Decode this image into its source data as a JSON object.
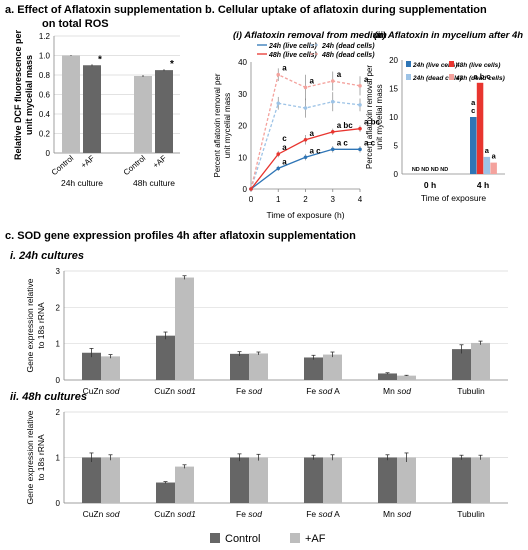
{
  "headings": {
    "a": "a. Effect of Aflatoxin supplementation",
    "a2": "on total ROS",
    "b": "b. Cellular uptake of aflatoxin during supplementation",
    "b_i": "(i) Aflatoxin removal from medium",
    "b_ii": "(ii) Aflatoxin in mycelium after 4h",
    "c": "c. SOD gene expression profiles 4h after aflatoxin supplementation",
    "c_i": "i. 24h cultures",
    "c_ii": "ii. 48h cultures"
  },
  "colors": {
    "dark_bar": "#666666",
    "light_bar": "#bdbdbd",
    "live24": "#2e75b6",
    "live48": "#e8352f",
    "dead24": "#9dc3e6",
    "dead48": "#f4a29d"
  },
  "chart_data": [
    {
      "id": "a",
      "type": "bar",
      "ylabel_lines": [
        "Relative DCF fluorescence per",
        "unit mycelial mass"
      ],
      "ylim": [
        0,
        1.2
      ],
      "yticks": [
        "0",
        "0.2",
        "0.4",
        "0.6",
        "0.8",
        "1.0",
        "1.2"
      ],
      "groups": [
        "24h culture",
        "48h culture"
      ],
      "bars": [
        {
          "group": 0,
          "label": "Control",
          "value": 1.0,
          "err": 0.005,
          "color": "light",
          "star": false
        },
        {
          "group": 0,
          "label": "+AF",
          "value": 0.9,
          "err": 0.01,
          "color": "dark",
          "star": true
        },
        {
          "group": 1,
          "label": "Control",
          "value": 0.79,
          "err": 0.01,
          "color": "light",
          "star": false
        },
        {
          "group": 1,
          "label": "+AF",
          "value": 0.85,
          "err": 0.01,
          "color": "dark",
          "star": true
        }
      ],
      "star_label": "*"
    },
    {
      "id": "b_i",
      "type": "line",
      "ylabel_lines": [
        "Percent aflatoxin removal per",
        "unit mycelial mass"
      ],
      "xlabel": "Time of exposure (h)",
      "x": [
        0,
        1,
        2,
        3,
        4
      ],
      "xticks": [
        "0",
        "1",
        "2",
        "3",
        "4"
      ],
      "ylim": [
        0,
        40
      ],
      "yticks": [
        "0",
        "10",
        "20",
        "30",
        "40"
      ],
      "series": [
        {
          "name": "24h (live cells)",
          "color": "live24",
          "dashed": false,
          "values": [
            0,
            6.5,
            10,
            12.5,
            12.5
          ],
          "err": [
            0,
            0.8,
            1,
            1,
            1
          ],
          "labels": [
            "",
            "a",
            "a c",
            "a c",
            "a c"
          ]
        },
        {
          "name": "48h (live cells)",
          "color": "live48",
          "dashed": false,
          "values": [
            0,
            11,
            15.5,
            18,
            19
          ],
          "err": [
            0,
            1,
            1.5,
            1,
            1
          ],
          "labels": [
            "",
            "c\na",
            "a",
            "a bc",
            "a bc"
          ]
        },
        {
          "name": "24h (dead cells)",
          "color": "dead24",
          "dashed": true,
          "values": [
            0,
            27,
            25.5,
            27.5,
            26.5
          ],
          "err": [
            0,
            2,
            3,
            3,
            2
          ],
          "labels": [
            "",
            "",
            "",
            "",
            ""
          ]
        },
        {
          "name": "48h (dead cells)",
          "color": "dead48",
          "dashed": true,
          "values": [
            0,
            36,
            32,
            34,
            32.5
          ],
          "err": [
            0,
            2,
            4,
            3,
            3
          ],
          "labels": [
            "",
            "a",
            "a",
            "a",
            "a"
          ]
        }
      ],
      "legend": "top"
    },
    {
      "id": "b_ii",
      "type": "bar",
      "ylabel_lines": [
        "Percent aflatoxin removal per",
        "unit mycelial mass"
      ],
      "xlabel": "Time of exposure",
      "categories": [
        "0 h",
        "4 h"
      ],
      "ylim": [
        0,
        20
      ],
      "yticks": [
        "0",
        "5",
        "10",
        "15",
        "20"
      ],
      "nd_label": "ND ND ND ND",
      "series": [
        {
          "name": "24h (live cells)",
          "color": "live24",
          "values": [
            0,
            10
          ],
          "label": "a c"
        },
        {
          "name": "48h (live cells)",
          "color": "live48",
          "values": [
            0,
            16
          ],
          "label": "a b c"
        },
        {
          "name": "24h (dead cells)",
          "color": "dead24",
          "values": [
            0,
            3
          ],
          "label": "a"
        },
        {
          "name": "48h (dead cells)",
          "color": "dead48",
          "values": [
            0,
            2
          ],
          "label": "a"
        }
      ]
    },
    {
      "id": "c_i",
      "type": "bar",
      "ylabel_lines": [
        "Gene expression relative",
        "to 18s rRNA"
      ],
      "ylim": [
        0,
        3
      ],
      "yticks": [
        "0",
        "1",
        "2",
        "3"
      ],
      "categories": [
        "CuZn sod",
        "CuZn sod1",
        "Fe sod",
        "Fe sod A",
        "Mn sod",
        "Tubulin"
      ],
      "series": [
        {
          "name": "Control",
          "color": "dark",
          "values": [
            0.75,
            1.22,
            0.72,
            0.62,
            0.18,
            0.85
          ],
          "err": [
            0.12,
            0.1,
            0.06,
            0.06,
            0.02,
            0.12
          ]
        },
        {
          "name": "+AF",
          "color": "light",
          "values": [
            0.65,
            2.82,
            0.73,
            0.7,
            0.12,
            1.02
          ],
          "err": [
            0.05,
            0.05,
            0.04,
            0.07,
            0.01,
            0.05
          ]
        }
      ]
    },
    {
      "id": "c_ii",
      "type": "bar",
      "ylabel_lines": [
        "Gene expression relative",
        "to 18s rRNA"
      ],
      "ylim": [
        0,
        2
      ],
      "yticks": [
        "0",
        "1",
        "2"
      ],
      "categories": [
        "CuZn sod",
        "CuZn sod1",
        "Fe sod",
        "Fe sod A",
        "Mn sod",
        "Tubulin"
      ],
      "series": [
        {
          "name": "Control",
          "color": "dark",
          "values": [
            1.0,
            0.45,
            1.0,
            1.0,
            1.0,
            1.0
          ],
          "err": [
            0.1,
            0.02,
            0.08,
            0.05,
            0.06,
            0.05
          ]
        },
        {
          "name": "+AF",
          "color": "light",
          "values": [
            1.0,
            0.8,
            1.0,
            1.0,
            1.0,
            1.0
          ],
          "err": [
            0.06,
            0.04,
            0.07,
            0.06,
            0.1,
            0.05
          ]
        }
      ],
      "legend": [
        "Control",
        "+AF"
      ]
    }
  ]
}
